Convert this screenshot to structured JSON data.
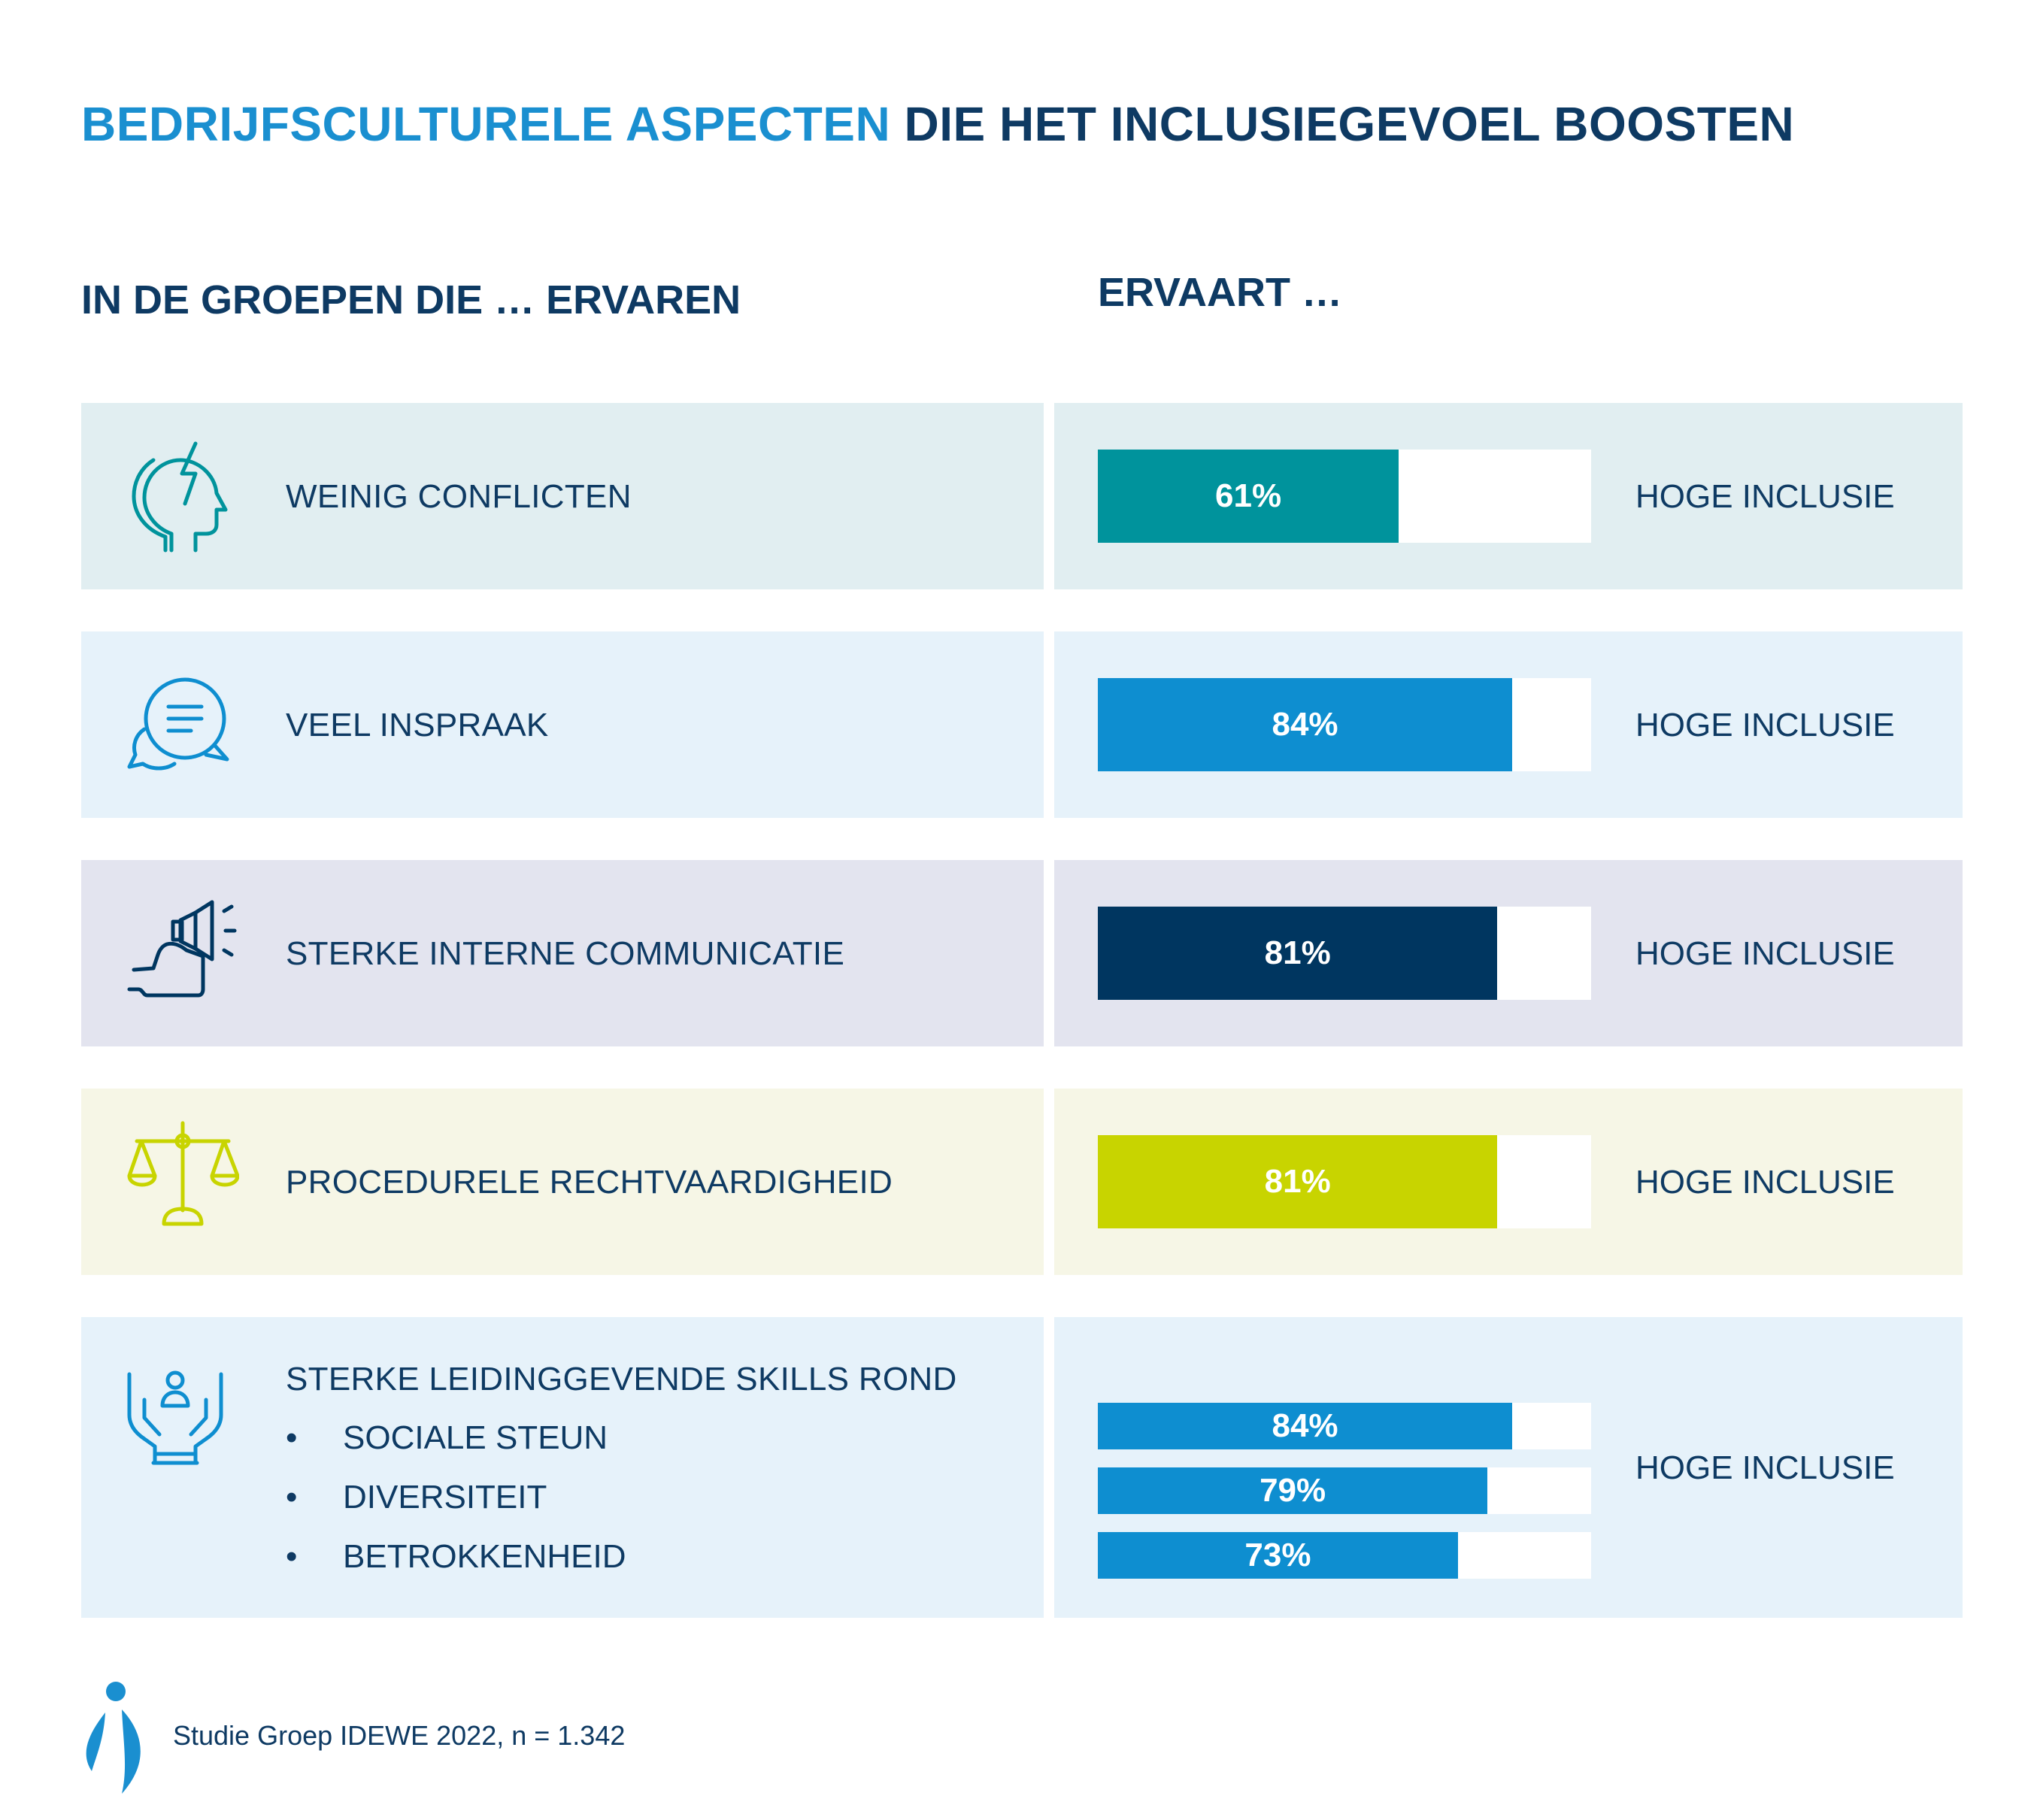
{
  "title": {
    "accent": "BEDRIJFSCULTURELE ASPECTEN",
    "rest": " DIE HET INCLUSIEGEVOEL BOOSTEN"
  },
  "headers": {
    "left": "IN DE GROEPEN DIE … ERVAREN",
    "right": "ERVAART …"
  },
  "rows": [
    {
      "label": "WEINIG CONFLICTEN",
      "icon": "head-conflict-icon",
      "bg": "#e1eef1",
      "color": "#00939c",
      "value": 61,
      "value_label": "61%",
      "result": "HOGE INCLUSIE"
    },
    {
      "label": "VEEL INSPRAAK",
      "icon": "speech-bubbles-icon",
      "bg": "#e6f2fa",
      "color": "#0e8ed0",
      "value": 84,
      "value_label": "84%",
      "result": "HOGE INCLUSIE"
    },
    {
      "label": "STERKE INTERNE COMMUNICATIE",
      "icon": "megaphone-hand-icon",
      "bg": "#e3e4ef",
      "color": "#003660",
      "value": 81,
      "value_label": "81%",
      "result": "HOGE INCLUSIE"
    },
    {
      "label": "PROCEDURELE RECHTVAARDIGHEID",
      "icon": "scales-icon",
      "bg": "#f6f6e6",
      "color": "#c8d400",
      "value": 81,
      "value_label": "81%",
      "result": "HOGE INCLUSIE"
    }
  ],
  "leadership": {
    "label": "STERKE LEIDINGGEVENDE SKILLS ROND",
    "icon": "hands-person-icon",
    "bg": "#e6f2fa",
    "color": "#0e8ed0",
    "bullet": "•",
    "items": [
      {
        "label": "SOCIALE STEUN",
        "value": 84,
        "value_label": "84%"
      },
      {
        "label": "DIVERSITEIT",
        "value": 79,
        "value_label": "79%"
      },
      {
        "label": "BETROKKENHEID",
        "value": 73,
        "value_label": "73%"
      }
    ],
    "result": "HOGE INCLUSIE"
  },
  "chart_data": {
    "type": "bar",
    "categories": [
      "WEINIG CONFLICTEN",
      "VEEL INSPRAAK",
      "STERKE INTERNE COMMUNICATIE",
      "PROCEDURELE RECHTVAARDIGHEID",
      "SOCIALE STEUN",
      "DIVERSITEIT",
      "BETROKKENHEID"
    ],
    "values": [
      61,
      84,
      81,
      81,
      84,
      79,
      73
    ],
    "ylim": [
      0,
      100
    ]
  },
  "source": "Studie Groep IDEWE 2022, n = 1.342",
  "logo_icon": "idewe-logo-icon"
}
